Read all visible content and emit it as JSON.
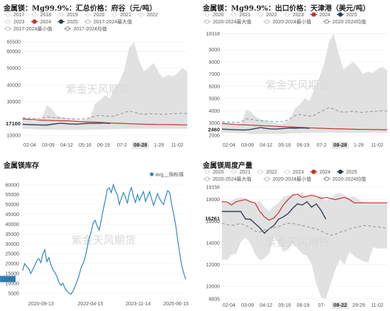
{
  "chart_data": [
    {
      "type": "area",
      "title": "金属镁：Mg99.9%：汇总价格：府谷（元/吨）",
      "legend": [
        "2017",
        "2018",
        "2019",
        "2020",
        "2021",
        "2022",
        "2023",
        "2024",
        "2025",
        "2017-2024最大值",
        "2017-2024最小值",
        "2017-2024均值"
      ],
      "y_ticks": [
        65500,
        60000,
        50000,
        40000,
        30000,
        17100,
        10000
      ],
      "y_range": [
        8000,
        66000
      ],
      "x_ticks": [
        "02-04",
        "03-09",
        "04-12",
        "05-16",
        "06-19",
        "07-2",
        "08-28",
        "1-29",
        "11-02"
      ],
      "highlight_y": "17100",
      "highlight_x": "08-28",
      "watermark": "紫金天风期货",
      "max_profile": [
        21000,
        19500,
        18500,
        18000,
        20500,
        28000,
        26000,
        22000,
        21000,
        20500,
        20000,
        19500,
        19000,
        19500,
        21000,
        29000,
        31000,
        34000,
        32000,
        38000,
        42000,
        49000,
        62000,
        65500,
        55000,
        48000,
        50000,
        53000,
        48000,
        44000,
        46000,
        45000,
        47000,
        50000,
        48000
      ],
      "min_profile": [
        14000,
        14000,
        13800,
        13600,
        13500,
        13500,
        13500,
        13400,
        13400,
        13400,
        13300,
        13300,
        13300,
        13400,
        13500,
        13500,
        13600,
        13600,
        13700,
        13700,
        13800,
        13900,
        14000,
        14000,
        14000,
        14000,
        14000,
        14000,
        14000,
        14000,
        14000,
        14000,
        14000,
        14000,
        14000
      ],
      "series": [
        {
          "name": "2024",
          "values": [
            19800,
            19600,
            19400,
            19200,
            19100,
            19000,
            18900,
            18800,
            18700,
            18700,
            18600,
            18400,
            18200,
            18100,
            18000,
            17900,
            17800,
            17600,
            17400,
            17300,
            17200,
            17100,
            17000,
            16900,
            16800,
            16700,
            16600,
            16600,
            16500,
            16500,
            16500,
            16400,
            16400,
            16300,
            16300
          ]
        },
        {
          "name": "2025",
          "values": [
            16600,
            16500,
            16400,
            16300,
            16200,
            16200,
            16600,
            17000,
            17300,
            17000,
            16800,
            16700,
            16900,
            17100,
            17300,
            17200,
            17300,
            17400,
            17100
          ]
        },
        {
          "name": "2017-2024均值",
          "values": [
            20500,
            20300,
            20100,
            20000,
            20200,
            21000,
            20700,
            20400,
            20200,
            20000,
            19900,
            19800,
            19700,
            19900,
            20600,
            21500,
            22000,
            21600,
            21200,
            21600,
            22600,
            23500,
            24500,
            23900,
            23000,
            22600,
            22800,
            23000,
            22700,
            22500,
            22800,
            22900,
            23000,
            23200,
            23000
          ]
        }
      ]
    },
    {
      "type": "area",
      "title": "金属镁：Mg99.9%：出口价格：天津港（美元/吨）",
      "legend": [
        "2020",
        "2021",
        "2022",
        "2023",
        "2024",
        "2025",
        "2020-2024最大值",
        "2020-2024最小值",
        "2020-2024均值"
      ],
      "y_ticks": [
        10318,
        9000,
        8000,
        7000,
        6000,
        5000,
        4000,
        3000,
        2460,
        2000
      ],
      "y_range": [
        1700,
        10400
      ],
      "x_ticks": [
        "02-04",
        "03-09",
        "04-12",
        "05-16",
        "06-19",
        "07-2",
        "08-28",
        "1-29",
        "11-02"
      ],
      "highlight_y": "2460",
      "highlight_x": "08-28",
      "watermark": "紫金天风期货",
      "max_profile": [
        3200,
        3000,
        2900,
        2800,
        2900,
        4100,
        3900,
        3500,
        3300,
        3200,
        3100,
        3000,
        2900,
        3000,
        3300,
        4200,
        4500,
        5000,
        4800,
        5800,
        6700,
        7800,
        9600,
        10318,
        8700,
        7400,
        7700,
        8000,
        7600,
        7000,
        7200,
        7100,
        7400,
        7600,
        7300
      ],
      "min_profile": [
        2200,
        2200,
        2200,
        2150,
        2150,
        2150,
        2100,
        2100,
        2100,
        2100,
        2100,
        2100,
        2100,
        2100,
        2150,
        2150,
        2150,
        2200,
        2200,
        2200,
        2200,
        2200,
        2200,
        2200,
        2200,
        2200,
        2200,
        2200,
        2200,
        2200,
        2200,
        2200,
        2200,
        2200,
        2200
      ],
      "series": [
        {
          "name": "2024",
          "values": [
            2950,
            2930,
            2900,
            2880,
            2860,
            2840,
            2820,
            2800,
            2780,
            2760,
            2750,
            2730,
            2710,
            2690,
            2680,
            2660,
            2640,
            2620,
            2600,
            2590,
            2570,
            2560,
            2540,
            2530,
            2520,
            2510,
            2500,
            2490,
            2480,
            2470,
            2470,
            2460,
            2460,
            2450,
            2450
          ]
        },
        {
          "name": "2025",
          "values": [
            2500,
            2480,
            2460,
            2440,
            2430,
            2430,
            2480,
            2560,
            2620,
            2560,
            2520,
            2500,
            2530,
            2560,
            2590,
            2570,
            2590,
            2600,
            2560
          ]
        },
        {
          "name": "2020-2024均值",
          "values": [
            3100,
            3080,
            3060,
            3040,
            3080,
            3350,
            3300,
            3220,
            3180,
            3160,
            3140,
            3120,
            3100,
            3140,
            3350,
            3600,
            3700,
            3620,
            3560,
            3640,
            3860,
            4050,
            4250,
            4150,
            3950,
            3880,
            3920,
            3960,
            3900,
            3860,
            3920,
            3940,
            3960,
            4000,
            3960
          ]
        }
      ]
    },
    {
      "type": "line",
      "title": "金属镁库存",
      "legend": [
        "avg__指标值"
      ],
      "y_ticks": [
        60000,
        55000,
        50000,
        45000,
        40000,
        35000,
        30000,
        25000,
        20000,
        15000,
        10000,
        5000
      ],
      "y_range": [
        3500,
        61000
      ],
      "x_ticks": [
        "2020-09-13",
        "2022-04-15",
        "2023-11-14",
        "2025-06-15"
      ],
      "x_tick_pos": [
        0.12,
        0.42,
        0.71,
        1.0
      ],
      "left_label": "12000",
      "watermark": "紫金天风期货",
      "series": [
        {
          "name": "avg__指标值",
          "values": [
            16500,
            20000,
            18500,
            17500,
            15000,
            17000,
            19000,
            21500,
            22500,
            20500,
            25000,
            27000,
            21000,
            23000,
            19500,
            17000,
            15500,
            13500,
            10500,
            9000,
            10000,
            7500,
            6000,
            5000,
            4500,
            6000,
            8500,
            11000,
            14000,
            18000,
            20000,
            23000,
            28000,
            33000,
            36000,
            40500,
            42000,
            39000,
            37000,
            42000,
            47500,
            52000,
            57500,
            58500,
            56000,
            60000,
            57000,
            55000,
            50000,
            53000,
            56000,
            54000,
            50500,
            56000,
            58500,
            54000,
            51000,
            55000,
            52000,
            54500,
            56500,
            51500,
            54000,
            56500,
            53000,
            49500,
            52500,
            55500,
            53000,
            51000,
            50000,
            54000,
            57000,
            56000,
            50000,
            45000,
            39500,
            32000,
            25000,
            19000,
            15000,
            12000
          ]
        }
      ]
    },
    {
      "type": "area",
      "title": "金属镁周度产量",
      "legend": [
        "2020",
        "2021",
        "2022",
        "2023",
        "2024",
        "2025",
        "2020-2024最大值",
        "2020-2024最小值",
        "2020-2024均值"
      ],
      "y_ticks": [
        19156,
        18000,
        16261,
        16000,
        14000,
        12000,
        10000,
        8835
      ],
      "y_range": [
        8835,
        19156
      ],
      "x_ticks": [
        "02-04",
        "03-09",
        "04-12",
        "05-16",
        "06-19",
        "07-",
        "08-22",
        "29-29",
        "11-02"
      ],
      "highlight_y": "16261",
      "highlight_x": "08-22",
      "watermark": "紫金天风期货",
      "max_profile": [
        18000,
        17700,
        17900,
        18100,
        18200,
        18100,
        18000,
        17600,
        17900,
        17300,
        16900,
        17400,
        17700,
        18200,
        18400,
        18500,
        18300,
        18700,
        18200,
        18500,
        18200,
        18400,
        17900,
        18100,
        18500,
        18600,
        18400,
        18200,
        18300,
        18000,
        17700,
        17700,
        17700,
        17700,
        17700,
        17700
      ],
      "min_profile": [
        12500,
        12400,
        12900,
        13000,
        14100,
        14500,
        14000,
        13000,
        12400,
        12600,
        13000,
        14500,
        14000,
        13200,
        13400,
        14000,
        13500,
        13000,
        12800,
        12000,
        10200,
        9000,
        8835,
        10200,
        11500,
        12500,
        12000,
        13200,
        12800,
        12500,
        12300,
        12200,
        13600,
        13500,
        13500,
        13500
      ],
      "series": [
        {
          "name": "2024",
          "values": [
            17800,
            17800,
            17500,
            17800,
            17900,
            18000,
            17800,
            17700,
            16900,
            16400,
            16100,
            16300,
            16800,
            17500,
            18000,
            18400,
            18500,
            18200,
            18300,
            18400,
            18300,
            18100,
            18200,
            18100,
            18000,
            18100,
            18200,
            18000,
            17700,
            17700,
            17700,
            17700,
            17700,
            17700,
            17700,
            17700
          ]
        },
        {
          "name": "2025",
          "values": [
            16900,
            16900,
            16900,
            16900,
            16900,
            16200,
            16200,
            15800,
            15400,
            14900,
            15300,
            15600,
            16200,
            16400,
            16700,
            17200,
            17600,
            17500,
            17800,
            17300,
            17600,
            17000,
            16200
          ]
        },
        {
          "name": "2020-2024均值",
          "values": [
            15800,
            15700,
            15600,
            15700,
            15800,
            15600,
            15400,
            15100,
            15000,
            15200,
            15300,
            15400,
            15500,
            15700,
            15800,
            15800,
            15700,
            15600,
            15500,
            15400,
            15300,
            15100,
            14900,
            14700,
            14800,
            15000,
            15100,
            15300,
            15400,
            15500,
            15600,
            15600,
            15500,
            15500,
            15400,
            15400
          ]
        }
      ]
    }
  ]
}
